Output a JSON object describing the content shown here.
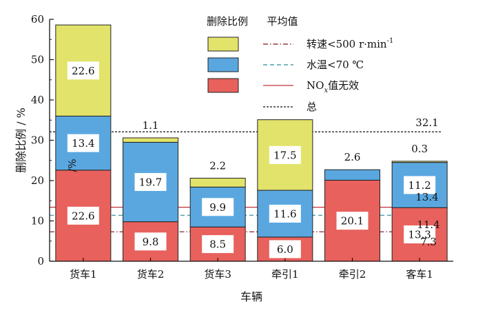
{
  "chart_data": {
    "type": "bar",
    "stacked": true,
    "xlabel": "车辆",
    "ylabel": "删除比例 / %",
    "ylim": [
      0,
      60
    ],
    "yticks": [
      0,
      10,
      20,
      30,
      40,
      50,
      60
    ],
    "categories": [
      "货车1",
      "货车2",
      "货车3",
      "牵引1",
      "牵引2",
      "客车1"
    ],
    "legend_headers": {
      "bars": "删除比例",
      "lines": "平均值"
    },
    "series": [
      {
        "name": "NOx值无效",
        "color": "#e8615c",
        "values": [
          22.6,
          9.8,
          8.5,
          6.0,
          20.1,
          13.3
        ]
      },
      {
        "name": "水温<70 ℃",
        "color": "#5aa7e0",
        "values": [
          13.4,
          19.7,
          9.9,
          11.6,
          2.6,
          11.2
        ]
      },
      {
        "name": "转速<500 r·min-1",
        "color": "#e2e36a",
        "values": [
          22.6,
          1.1,
          2.2,
          17.5,
          0,
          0.3
        ]
      }
    ],
    "segment_labels": [
      [
        "22.6",
        "13.4",
        "22.6"
      ],
      [
        "9.8",
        "19.7",
        "1.1"
      ],
      [
        "8.5",
        "9.9",
        "2.2"
      ],
      [
        "6.0",
        "11.6",
        "17.5"
      ],
      [
        "20.1",
        "2.6",
        null
      ],
      [
        "13.3",
        "11.2",
        "0.3"
      ]
    ],
    "reference_lines": [
      {
        "name": "转速<500 r·min-1",
        "value": 7.3,
        "label": "7.3",
        "style": "dashdot",
        "color": "#7a1010"
      },
      {
        "name": "水温<70 ℃",
        "value": 11.4,
        "label": "11.4",
        "style": "dashed",
        "color": "#2a8a9a"
      },
      {
        "name": "NOx值无效",
        "value": 13.4,
        "label": "13.4",
        "style": "solid",
        "color": "#c0303a"
      },
      {
        "name": "总",
        "value": 32.1,
        "label": "32.1",
        "style": "dotted",
        "color": "#111111"
      }
    ],
    "stray_annotation": "/%"
  }
}
